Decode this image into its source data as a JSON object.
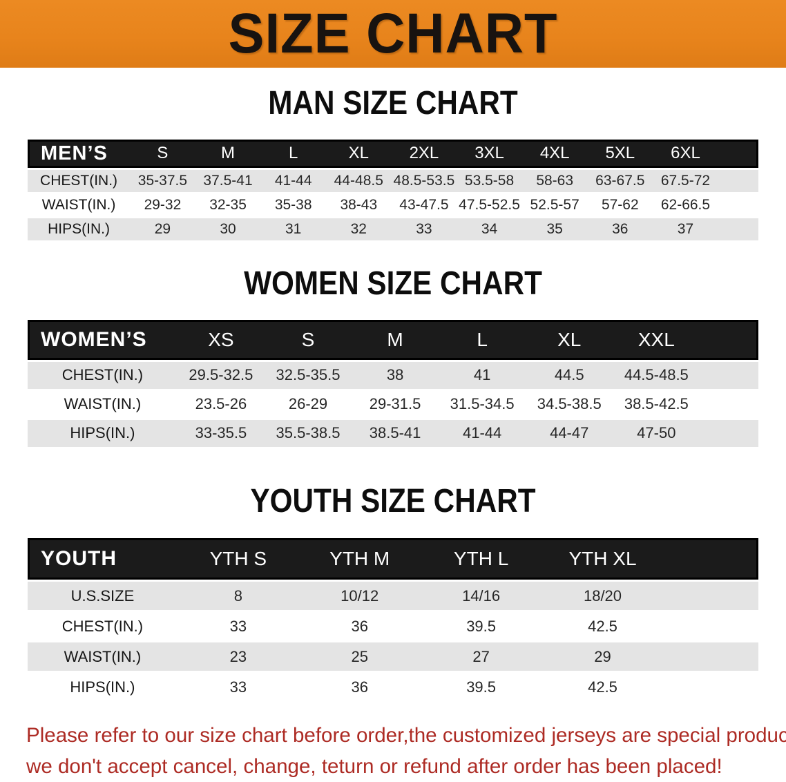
{
  "banner": {
    "title": "SIZE CHART",
    "bg_color": "#E8841C",
    "text_color": "#181310"
  },
  "sections": [
    {
      "heading": "MAN SIZE CHART",
      "table": {
        "corner_label": "MEN’S",
        "size_columns": [
          "S",
          "M",
          "L",
          "XL",
          "2XL",
          "3XL",
          "4XL",
          "5XL",
          "6XL"
        ],
        "rows": [
          {
            "label": "CHEST(IN.)",
            "values": [
              "35-37.5",
              "37.5-41",
              "41-44",
              "44-48.5",
              "48.5-53.5",
              "53.5-58",
              "58-63",
              "63-67.5",
              "67.5-72"
            ]
          },
          {
            "label": "WAIST(IN.)",
            "values": [
              "29-32",
              "32-35",
              "35-38",
              "38-43",
              "43-47.5",
              "47.5-52.5",
              "52.5-57",
              "57-62",
              "62-66.5"
            ]
          },
          {
            "label": "HIPS(IN.)",
            "values": [
              "29",
              "30",
              "31",
              "32",
              "33",
              "34",
              "35",
              "36",
              "37"
            ]
          }
        ]
      }
    },
    {
      "heading": "WOMEN SIZE CHART",
      "table": {
        "corner_label": "WOMEN’S",
        "size_columns": [
          "XS",
          "S",
          "M",
          "L",
          "XL",
          "XXL"
        ],
        "rows": [
          {
            "label": "CHEST(IN.)",
            "values": [
              "29.5-32.5",
              "32.5-35.5",
              "38",
              "41",
              "44.5",
              "44.5-48.5"
            ]
          },
          {
            "label": "WAIST(IN.)",
            "values": [
              "23.5-26",
              "26-29",
              "29-31.5",
              "31.5-34.5",
              "34.5-38.5",
              "38.5-42.5"
            ]
          },
          {
            "label": "HIPS(IN.)",
            "values": [
              "33-35.5",
              "35.5-38.5",
              "38.5-41",
              "41-44",
              "44-47",
              "47-50"
            ]
          }
        ]
      }
    },
    {
      "heading": "YOUTH SIZE CHART",
      "table": {
        "corner_label": "YOUTH",
        "size_columns": [
          "YTH S",
          "YTH M",
          "YTH L",
          "YTH XL"
        ],
        "rows": [
          {
            "label": "U.S.SIZE",
            "values": [
              "8",
              "10/12",
              "14/16",
              "18/20"
            ]
          },
          {
            "label": "CHEST(IN.)",
            "values": [
              "33",
              "36",
              "39.5",
              "42.5"
            ]
          },
          {
            "label": "WAIST(IN.)",
            "values": [
              "23",
              "25",
              "27",
              "29"
            ]
          },
          {
            "label": "HIPS(IN.)",
            "values": [
              "33",
              "36",
              "39.5",
              "42.5"
            ]
          }
        ]
      }
    }
  ],
  "disclaimer": {
    "color": "#AD2B24",
    "lines": [
      "Please refer to our size chart before order,the customized jerseys are special products,",
      "we don't accept cancel, change, teturn or refund after order has been placed!"
    ]
  },
  "colors": {
    "banner_orange": "#E8841C",
    "header_bar_black": "#1B1B1B",
    "row_stripe_gray": "#E4E4E4",
    "disclaimer_red": "#AD2B24"
  }
}
